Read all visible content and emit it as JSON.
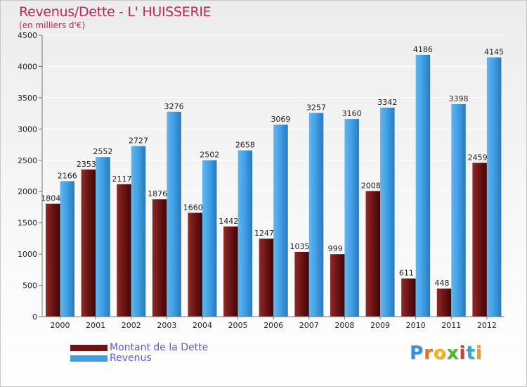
{
  "title": "Revenus/Dette - L' HUISSERIE",
  "subtitle": "(en milliers d'€)",
  "logo": "Proxiti",
  "colors": {
    "dette": "#6b1414",
    "revenus": "#3f9ee3",
    "title": "#c0245f",
    "legend_text": "#5a5ad8"
  },
  "chart_data": {
    "type": "bar",
    "categories": [
      "2000",
      "2001",
      "2002",
      "2003",
      "2004",
      "2005",
      "2006",
      "2007",
      "2008",
      "2009",
      "2010",
      "2011",
      "2012"
    ],
    "series": [
      {
        "name": "Montant de la Dette",
        "values": [
          1804,
          2353,
          2117,
          1876,
          1660,
          1442,
          1247,
          1035,
          999,
          2008,
          611,
          448,
          2459
        ]
      },
      {
        "name": "Revenus",
        "values": [
          2166,
          2552,
          2727,
          3276,
          2502,
          2658,
          3069,
          3257,
          3160,
          3342,
          4186,
          3398,
          4145
        ]
      }
    ],
    "yticks": [
      "0",
      "500",
      "1000",
      "1500",
      "2000",
      "2500",
      "3000",
      "3500",
      "4000",
      "4500"
    ],
    "ylim": [
      0,
      4500
    ],
    "grid": true,
    "legend": "bottom-left"
  }
}
